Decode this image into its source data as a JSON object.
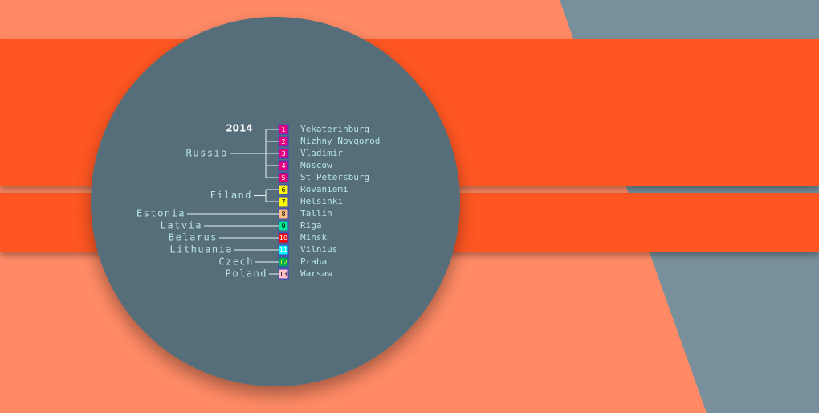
{
  "title": "2014",
  "countries": [
    {
      "name": "Russia",
      "cities": [
        {
          "number": 1,
          "name": "Yekaterinburg",
          "color": "#e6007e",
          "text_color": "#ffffff"
        },
        {
          "number": 2,
          "name": "Nizhny Novgorod",
          "color": "#e6007e",
          "text_color": "#ffffff"
        },
        {
          "number": 3,
          "name": "Vladimir",
          "color": "#e6007e",
          "text_color": "#ffffff"
        },
        {
          "number": 4,
          "name": "Moscow",
          "color": "#e6007e",
          "text_color": "#ffffff"
        },
        {
          "number": 5,
          "name": "St Petersburg",
          "color": "#e6006e",
          "text_color": "#ffffff"
        }
      ]
    },
    {
      "name": "Filand",
      "cities": [
        {
          "number": 6,
          "name": "Rovaniemi",
          "color": "#ffff00",
          "text_color": "#000000"
        },
        {
          "number": 7,
          "name": "Helsinki",
          "color": "#ffff00",
          "text_color": "#000000"
        }
      ]
    },
    {
      "name": "Estonia",
      "cities": [
        {
          "number": 8,
          "name": "Tallin",
          "color": "#ffc080",
          "text_color": "#000000"
        }
      ]
    },
    {
      "name": "Latvia",
      "cities": [
        {
          "number": 9,
          "name": "Riga",
          "color": "#00e890",
          "text_color": "#000000"
        }
      ]
    },
    {
      "name": "Belarus",
      "cities": [
        {
          "number": 10,
          "name": "Minsk",
          "color": "#ff0000",
          "text_color": "#ffffff"
        }
      ]
    },
    {
      "name": "Lithuania",
      "cities": [
        {
          "number": 11,
          "name": "Vilnius",
          "color": "#00ffff",
          "text_color": "#ffffff"
        }
      ]
    },
    {
      "name": "Czech",
      "cities": [
        {
          "number": 12,
          "name": "Praha",
          "color": "#00b050",
          "text_color": "#ffff00"
        }
      ]
    },
    {
      "name": "Poland",
      "cities": [
        {
          "number": 13,
          "name": "Warsaw",
          "color": "#ffc0c8",
          "text_color": "#000000"
        }
      ]
    }
  ]
}
